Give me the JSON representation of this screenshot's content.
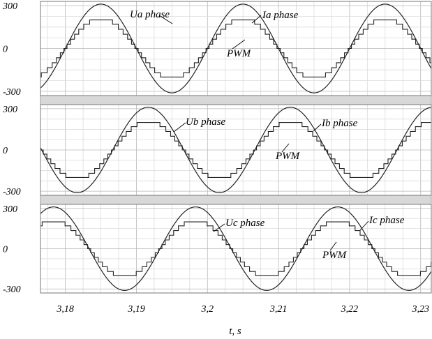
{
  "chart_data": {
    "type": "line",
    "x_label": "t, s",
    "x_range": [
      3.1765,
      3.2315
    ],
    "x_ticks": [
      {
        "value": 3.18,
        "label": "3,18"
      },
      {
        "value": 3.19,
        "label": "3,19"
      },
      {
        "value": 3.2,
        "label": "3,2"
      },
      {
        "value": 3.21,
        "label": "3,21"
      },
      {
        "value": 3.22,
        "label": "3,22"
      },
      {
        "value": 3.23,
        "label": "3,23"
      }
    ],
    "grid": true,
    "frequency_hz": 50,
    "voltage_amplitude": 311,
    "current_levels": [
      -200,
      -170,
      -135,
      -100,
      -65,
      -30,
      0,
      30,
      65,
      100,
      135,
      170,
      200
    ],
    "pwm_notch_depth": 65,
    "panels": [
      {
        "y_range": [
          -330,
          330
        ],
        "y_ticks": [
          {
            "value": 300,
            "label": "300"
          },
          {
            "value": 0,
            "label": "0"
          },
          {
            "value": -300,
            "label": "-300"
          }
        ],
        "phase_offset_deg": 0,
        "series": [
          {
            "name": "Ua phase",
            "kind": "voltage"
          },
          {
            "name": "Ia phase",
            "kind": "current"
          }
        ],
        "annotation": "PWM"
      },
      {
        "y_range": [
          -330,
          330
        ],
        "y_ticks": [
          {
            "value": 300,
            "label": "300"
          },
          {
            "value": 0,
            "label": "0"
          },
          {
            "value": -300,
            "label": "-300"
          }
        ],
        "phase_offset_deg": -120,
        "series": [
          {
            "name": "Ub phase",
            "kind": "voltage"
          },
          {
            "name": "Ib phase",
            "kind": "current"
          }
        ],
        "annotation": "PWM"
      },
      {
        "y_range": [
          -330,
          330
        ],
        "y_ticks": [
          {
            "value": 300,
            "label": "300"
          },
          {
            "value": 0,
            "label": "0"
          },
          {
            "value": -300,
            "label": "-300"
          }
        ],
        "phase_offset_deg": 120,
        "series": [
          {
            "name": "Uc phase",
            "kind": "voltage"
          },
          {
            "name": "Ic phase",
            "kind": "current"
          }
        ],
        "annotation": "PWM"
      }
    ]
  }
}
